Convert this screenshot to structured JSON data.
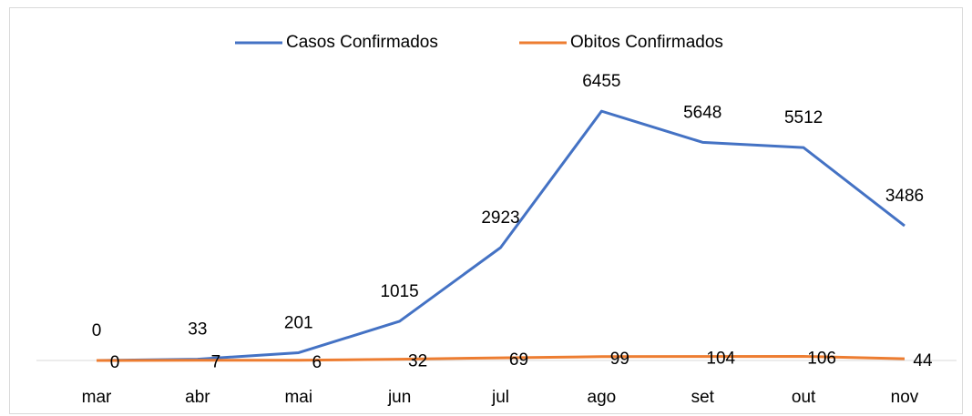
{
  "chart_data": {
    "type": "line",
    "categories": [
      "mar",
      "abr",
      "mai",
      "jun",
      "jul",
      "ago",
      "set",
      "out",
      "nov"
    ],
    "series": [
      {
        "name": "Casos Confirmados",
        "color": "#4472c4",
        "values": [
          0,
          33,
          201,
          1015,
          2923,
          6455,
          5648,
          5512,
          3486
        ]
      },
      {
        "name": "Obitos Confirmados",
        "color": "#ed7d31",
        "values": [
          0,
          7,
          6,
          32,
          69,
          99,
          104,
          106,
          44
        ]
      }
    ],
    "ylim": [
      0,
      7000
    ],
    "legend": "top"
  }
}
